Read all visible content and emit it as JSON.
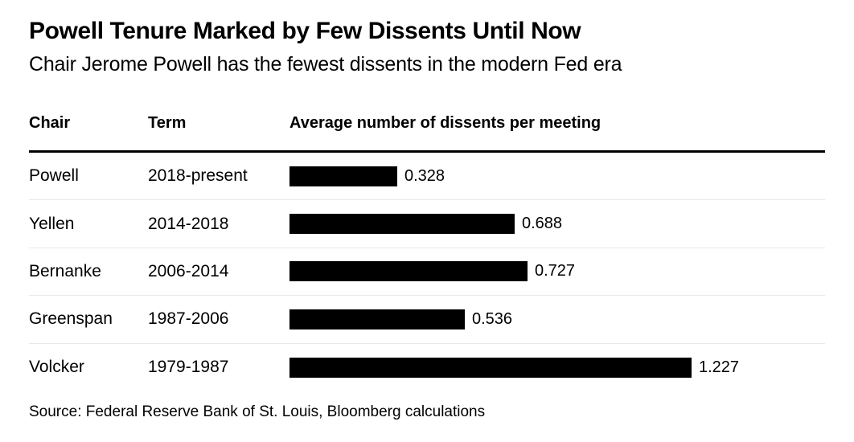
{
  "table": {
    "columns": {
      "chair": "Chair",
      "term": "Term"
    }
  },
  "chart_data": {
    "type": "bar",
    "orientation": "horizontal",
    "title": "Powell Tenure Marked by Few Dissents Until Now",
    "subtitle": "Chair Jerome Powell has the fewest dissents in the modern Fed era",
    "categories": [
      "Powell",
      "Yellen",
      "Bernanke",
      "Greenspan",
      "Volcker"
    ],
    "terms": [
      "2018-present",
      "2014-2018",
      "2006-2014",
      "1987-2006",
      "1979-1987"
    ],
    "values": [
      0.328,
      0.688,
      0.727,
      0.536,
      1.227
    ],
    "xlabel": "Average number of dissents per meeting",
    "ylabel": "",
    "xlim": [
      0,
      1.227
    ],
    "grid": "off",
    "legend": "none",
    "bar_color": "#000000",
    "source": "Source: Federal Reserve Bank of St. Louis, Bloomberg calculations"
  },
  "colors": {
    "background": "#ffffff",
    "text": "#000000",
    "bar": "#000000",
    "header_rule": "#000000",
    "row_divider": "#e9e9e9"
  }
}
